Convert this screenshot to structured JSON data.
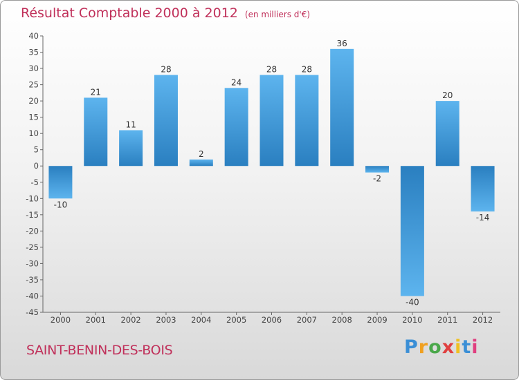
{
  "title": "Résultat Comptable 2000 à 2012",
  "unit": "(en milliers d'€)",
  "commune": "SAINT-BENIN-DES-BOIS",
  "logo": {
    "letters": [
      "P",
      "r",
      "o",
      "x",
      "i",
      "t",
      "i"
    ],
    "colors": [
      "#3b8fd6",
      "#f0a020",
      "#4aa84a",
      "#e04040",
      "#f0c020",
      "#3b8fd6",
      "#e04080"
    ]
  },
  "colors": {
    "bar_light": "#5db4ee",
    "bar_dark": "#2a7fc0",
    "title": "#c0305a"
  },
  "chart_data": {
    "type": "bar",
    "title": "Résultat Comptable 2000 à 2012",
    "subtitle": "(en milliers d'€)",
    "xlabel": "",
    "ylabel": "",
    "categories": [
      "2000",
      "2001",
      "2002",
      "2003",
      "2004",
      "2005",
      "2006",
      "2007",
      "2008",
      "2009",
      "2010",
      "2011",
      "2012"
    ],
    "values": [
      -10,
      21,
      11,
      28,
      2,
      24,
      28,
      28,
      36,
      -2,
      -40,
      20,
      -14
    ],
    "ylim": [
      -45,
      40
    ],
    "yticks": [
      40,
      35,
      30,
      25,
      20,
      15,
      10,
      5,
      0,
      -5,
      -10,
      -15,
      -20,
      -25,
      -30,
      -35,
      -40,
      -45
    ],
    "grid": false
  }
}
